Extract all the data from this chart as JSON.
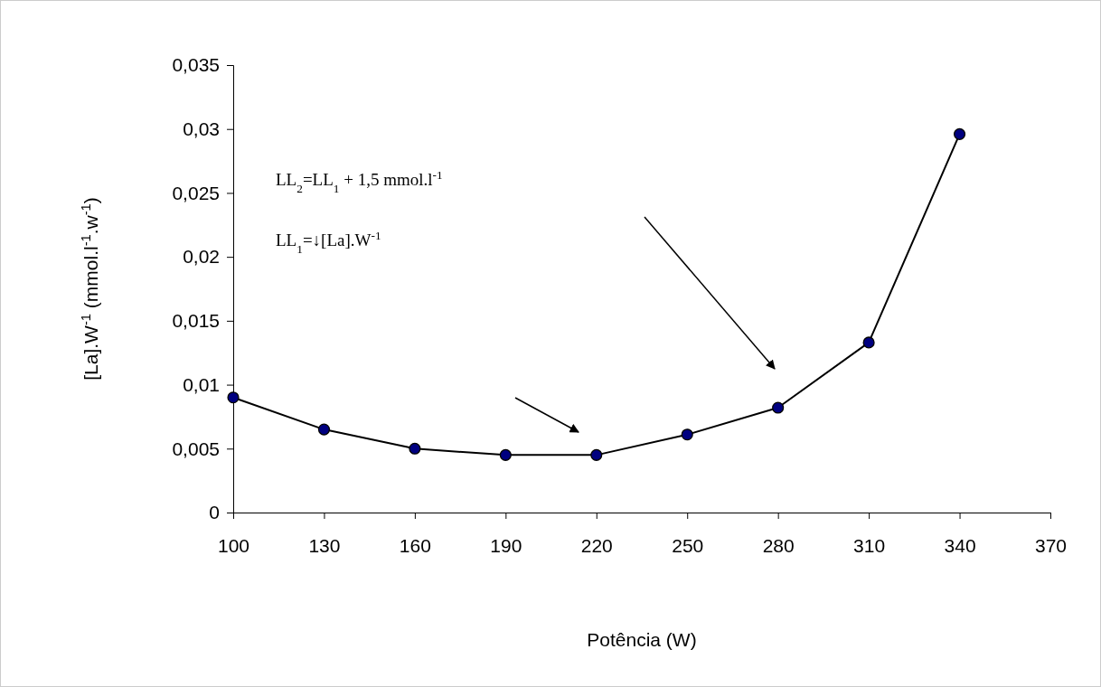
{
  "chart_data": {
    "type": "line",
    "xlabel": "Potência (W)",
    "ylabel": "[La].W$^{-1}$ (mmol.l$^{-1}$.w$^{-1}$)",
    "x": [
      100,
      130,
      160,
      190,
      220,
      250,
      280,
      310,
      340
    ],
    "series": [
      {
        "color": "#000080",
        "values": [
          0.009,
          0.0065,
          0.005,
          0.0045,
          0.0045,
          0.0061,
          0.0082,
          0.0133,
          0.0296
        ]
      }
    ],
    "xlim": [
      100,
      370
    ],
    "xticks": [
      100,
      130,
      160,
      190,
      220,
      250,
      280,
      310,
      340,
      370
    ],
    "ylim": [
      0,
      0.035
    ],
    "yticks": [
      0,
      {
        "value": 0.005,
        "label": "0,005"
      },
      {
        "value": 0.01,
        "label": "0,01"
      },
      {
        "value": 0.015,
        "label": "0,015"
      },
      {
        "value": 0.02,
        "label": "0,02"
      },
      {
        "value": 0.025,
        "label": "0,025"
      },
      {
        "value": 0.03,
        "label": "0,03"
      },
      {
        "value": 0.035,
        "label": "0,035"
      }
    ],
    "grid": false,
    "marker": "circle",
    "line_style": "solid",
    "annotations": [
      "LL$_{2}$=LL$_{1}$ + 1,5 mmol.l$^{-1}$",
      "LL$_{1}$=↓[La].W$^{-1}$"
    ]
  }
}
